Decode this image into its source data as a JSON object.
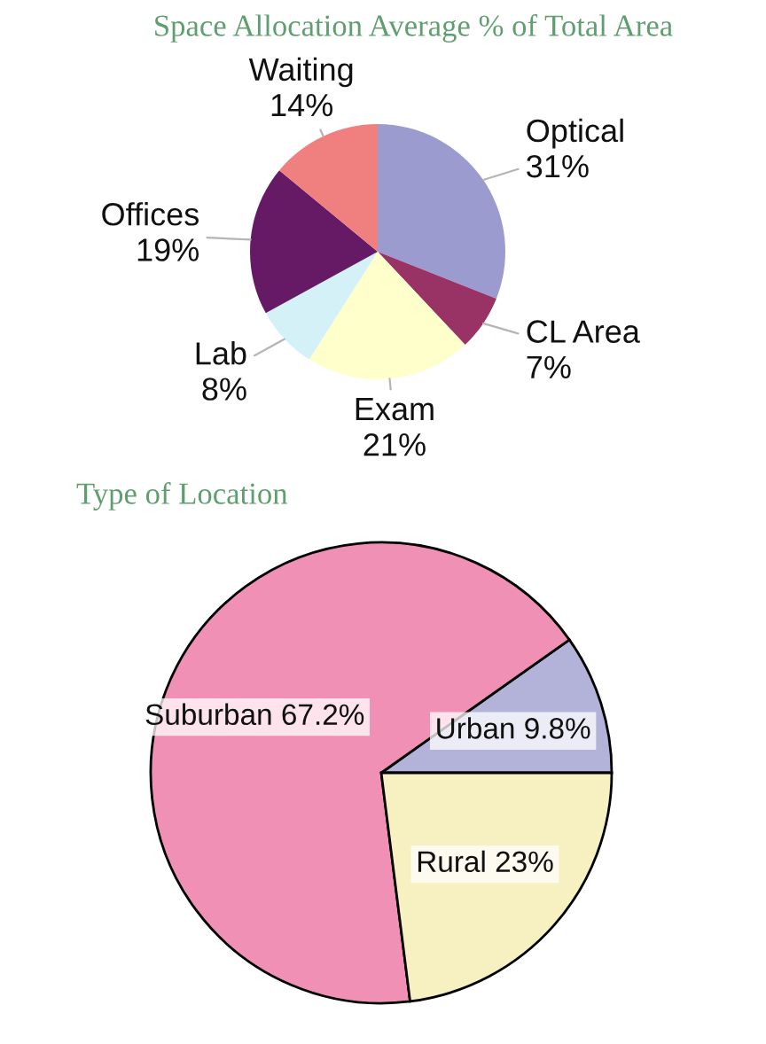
{
  "chart_data": [
    {
      "type": "pie",
      "title": "Space Allocation Average % of Total Area",
      "categories": [
        "Optical",
        "CL Area",
        "Exam",
        "Lab",
        "Offices",
        "Waiting"
      ],
      "values": [
        31,
        7,
        21,
        8,
        19,
        14
      ],
      "value_labels": [
        "31%",
        "7%",
        "21%",
        "8%",
        "19%",
        "14%"
      ],
      "colors": [
        "#9b9bd0",
        "#993366",
        "#ffffcc",
        "#d4f1f7",
        "#661a66",
        "#f08080"
      ]
    },
    {
      "type": "pie",
      "title": "Type of Location",
      "categories": [
        "Urban",
        "Suburban",
        "Rural"
      ],
      "values": [
        9.8,
        67.2,
        23
      ],
      "value_labels": [
        "9.8%",
        "67.2%",
        "23%"
      ],
      "colors": [
        "#b3b3d9",
        "#f190b5",
        "#f7f0c0"
      ]
    }
  ]
}
